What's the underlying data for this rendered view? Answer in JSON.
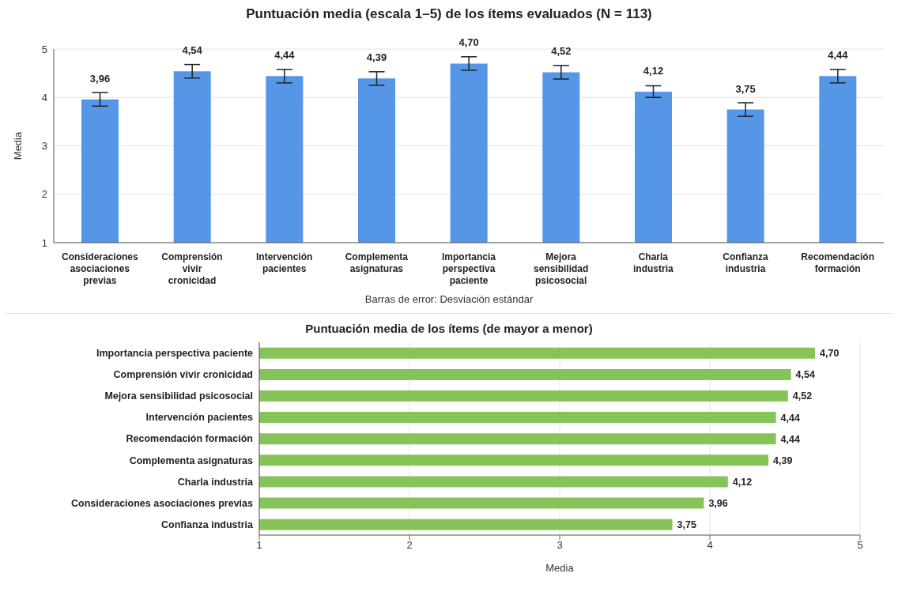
{
  "chart_data": [
    {
      "type": "bar",
      "title": "Puntuación media (escala 1–5) de los ítems evaluados (N = 113)",
      "ylabel": "Media",
      "categories": [
        "Consideraciones asociaciones previas",
        "Comprensión vivir cronicidad",
        "Intervención pacientes",
        "Complementa asignaturas",
        "Importancia perspectiva paciente",
        "Mejora sensibilidad psicosocial",
        "Charla industria",
        "Confianza industria",
        "Recomendación formación"
      ],
      "values": [
        3.96,
        4.54,
        4.44,
        4.39,
        4.7,
        4.52,
        4.12,
        3.75,
        4.44
      ],
      "errors": [
        0.14,
        0.14,
        0.14,
        0.14,
        0.14,
        0.14,
        0.12,
        0.14,
        0.14
      ],
      "value_labels": [
        "3,96",
        "4,54",
        "4,44",
        "4,39",
        "4,70",
        "4,52",
        "4,12",
        "3,75",
        "4,44"
      ],
      "color": "#5596e6",
      "ylim": [
        1,
        5
      ],
      "yticks": [
        1,
        2,
        3,
        4,
        5
      ],
      "grid": "y",
      "annotations": [
        "Barras de error: Desviación estándar"
      ]
    },
    {
      "type": "bar",
      "orientation": "horizontal",
      "title": "Puntuación media de los ítems (de mayor a menor)",
      "xlabel": "Media",
      "categories": [
        "Importancia perspectiva paciente",
        "Comprensión vivir cronicidad",
        "Mejora sensibilidad psicosocial",
        "Intervención pacientes",
        "Recomendación formación",
        "Complementa asignaturas",
        "Charla industria",
        "Consideraciones asociaciones previas",
        "Confianza industria"
      ],
      "values": [
        4.7,
        4.54,
        4.52,
        4.44,
        4.44,
        4.39,
        4.12,
        3.96,
        3.75
      ],
      "value_labels": [
        "4,70",
        "4,54",
        "4,52",
        "4,44",
        "4,44",
        "4,39",
        "4,12",
        "3,96",
        "3,75"
      ],
      "color": "#86c45a",
      "xlim": [
        1,
        5
      ],
      "xticks": [
        1,
        2,
        3,
        4,
        5
      ],
      "grid": "x"
    }
  ]
}
